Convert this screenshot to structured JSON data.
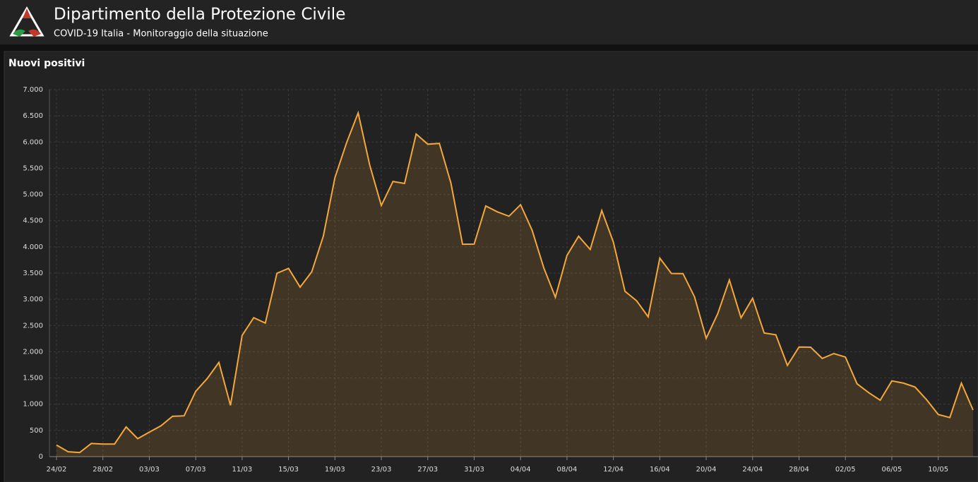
{
  "header": {
    "title": "Dipartimento della Protezione Civile",
    "subtitle": "COVID-19 Italia - Monitoraggio della situazione"
  },
  "chart_data": {
    "type": "area",
    "title": "Nuovi positivi",
    "categories": [
      "24/02",
      null,
      null,
      null,
      "28/02",
      null,
      null,
      null,
      "03/03",
      null,
      null,
      null,
      "07/03",
      null,
      null,
      null,
      "11/03",
      null,
      null,
      null,
      "15/03",
      null,
      null,
      null,
      "19/03",
      null,
      null,
      null,
      "23/03",
      null,
      null,
      null,
      "27/03",
      null,
      null,
      null,
      "31/03",
      null,
      null,
      null,
      "04/04",
      null,
      null,
      null,
      "08/04",
      null,
      null,
      null,
      "12/04",
      null,
      null,
      null,
      "16/04",
      null,
      null,
      null,
      "20/04",
      null,
      null,
      null,
      "24/04",
      null,
      null,
      null,
      "28/04",
      null,
      null,
      null,
      "02/05",
      null,
      null,
      null,
      "06/05",
      null,
      null,
      null,
      "10/05",
      null,
      null,
      null
    ],
    "values": [
      221,
      93,
      78,
      250,
      238,
      240,
      566,
      342,
      466,
      587,
      769,
      778,
      1247,
      1492,
      1797,
      977,
      2313,
      2651,
      2547,
      3497,
      3590,
      3233,
      3526,
      4207,
      5322,
      5986,
      6557,
      5560,
      4789,
      5249,
      5210,
      6153,
      5959,
      5974,
      5217,
      4050,
      4053,
      4782,
      4668,
      4585,
      4805,
      4316,
      3599,
      3039,
      3836,
      4204,
      3951,
      4694,
      4092,
      3153,
      2972,
      2667,
      3786,
      3493,
      3491,
      3047,
      2256,
      2729,
      3370,
      2646,
      3021,
      2357,
      2324,
      1739,
      2091,
      2086,
      1872,
      1965,
      1900,
      1389,
      1221,
      1075,
      1444,
      1401,
      1327,
      1083,
      802,
      744,
      1402,
      888
    ],
    "color": "#f5a83a",
    "ylim": [
      0,
      7000
    ],
    "yticks": [
      0,
      500,
      {
        "value": 1000,
        "label": "1.000"
      },
      {
        "value": 1500,
        "label": "1.500"
      },
      {
        "value": 2000,
        "label": "2.000"
      },
      {
        "value": 2500,
        "label": "2.500"
      },
      {
        "value": 3000,
        "label": "3.000"
      },
      {
        "value": 3500,
        "label": "3.500"
      },
      {
        "value": 4000,
        "label": "4.000"
      },
      {
        "value": 4500,
        "label": "4.500"
      },
      {
        "value": 5000,
        "label": "5.000"
      },
      {
        "value": 5500,
        "label": "5.500"
      },
      {
        "value": 6000,
        "label": "6.000"
      },
      {
        "value": 6500,
        "label": "6.500"
      },
      {
        "value": 7000,
        "label": "7.000"
      }
    ],
    "grid": true
  }
}
